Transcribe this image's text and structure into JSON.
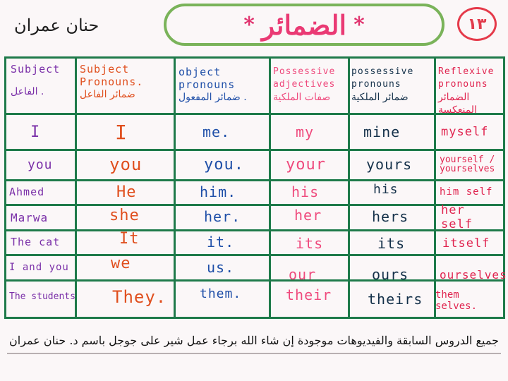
{
  "header": {
    "author": "حنان عمران",
    "title": "الضمائر",
    "star": "*",
    "page_number": "١٣"
  },
  "table": {
    "headers": [
      {
        "en": "Subject",
        "ar": "الفاعل ."
      },
      {
        "en": "Subject Pronouns.",
        "ar": "ضمائر الفاعل"
      },
      {
        "en": "object pronouns",
        "ar": "ضمائر المفعول ."
      },
      {
        "en": "Possessive adjectives",
        "ar": "صفات الملكية"
      },
      {
        "en": "possessive pronouns",
        "ar": "ضمائر الملكية"
      },
      {
        "en": "Reflexive pronouns",
        "ar": "الضمائر المنعكسة"
      }
    ],
    "rows": [
      [
        "I",
        "I",
        "me.",
        "my",
        "mine",
        "myself"
      ],
      [
        "you",
        "you",
        "you.",
        "your",
        "yours",
        "yourself / yourselves"
      ],
      [
        "Ahmed",
        "He",
        "him.",
        "his",
        "his",
        "him self"
      ],
      [
        "Marwa",
        "she",
        "her.",
        "her",
        "hers",
        "her self"
      ],
      [
        "The cat",
        "It",
        "it.",
        "its",
        "its",
        "itself"
      ],
      [
        "I and you",
        "we",
        "us.",
        "our",
        "ours",
        "ourselves"
      ],
      [
        "The students",
        "They.",
        "them.",
        "their",
        "theirs",
        "them selves."
      ]
    ],
    "colors": [
      "#7a2fa8",
      "#e04f1e",
      "#1f4fa8",
      "#ef4a7d",
      "#15314a",
      "#e0244f"
    ],
    "grid_color": "#1e7a4a"
  },
  "footer": {
    "text": "جميع الدروس السابقة والفيديوهات موجودة إن شاء الله برجاء عمل شير على جوجل باسم د. حنان عمران"
  }
}
